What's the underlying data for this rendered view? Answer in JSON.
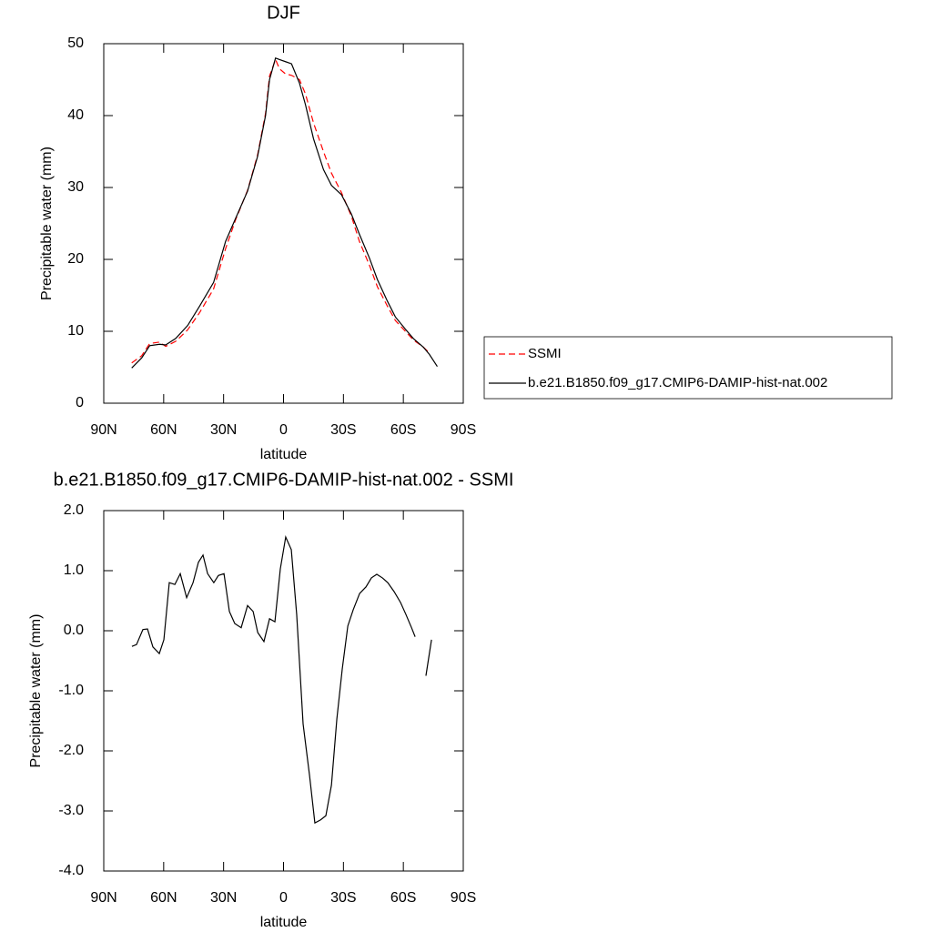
{
  "chart_data": [
    {
      "type": "line",
      "title": "DJF",
      "xlabel": "latitude",
      "ylabel": "Precipitable water (mm)",
      "x": [
        76,
        71,
        67,
        62,
        59,
        54,
        48,
        42,
        35,
        29,
        24,
        18,
        13,
        9,
        7,
        4,
        2,
        -1,
        -4,
        -8,
        -11,
        -15,
        -20,
        -24,
        -29,
        -34,
        -38,
        -43,
        -47,
        -52,
        -56,
        -61,
        -65,
        -70,
        -73,
        -77
      ],
      "series": [
        {
          "name": "SSMI",
          "color": "#ff0000",
          "dash": true,
          "values": [
            5.6,
            6.6,
            8.3,
            8.5,
            7.9,
            8.6,
            10.2,
            12.6,
            15.9,
            21.5,
            25.5,
            29.6,
            34.5,
            40.3,
            45.5,
            47.8,
            46.5,
            45.8,
            45.6,
            45.0,
            43.0,
            39.0,
            35.0,
            32.0,
            29.3,
            26.0,
            22.5,
            19.2,
            16.2,
            13.5,
            11.5,
            10.0,
            8.8,
            7.8,
            7.0,
            null
          ]
        },
        {
          "name": "b.e21.B1850.f09_g17.CMIP6-DAMIP-hist-nat.002",
          "color": "#000000",
          "dash": false,
          "values": [
            4.9,
            6.3,
            8.0,
            8.2,
            8.1,
            9.0,
            10.8,
            13.5,
            16.8,
            22.5,
            25.7,
            29.5,
            34.3,
            40.0,
            45.0,
            48.0,
            47.8,
            47.5,
            47.2,
            44.5,
            41.5,
            36.8,
            32.5,
            30.3,
            29.0,
            26.3,
            23.5,
            20.2,
            17.2,
            14.2,
            12.0,
            10.3,
            9.0,
            7.8,
            6.8,
            5.1
          ]
        }
      ],
      "xlim": [
        90,
        -90
      ],
      "xticks": [
        {
          "value": 90,
          "label": "90N"
        },
        {
          "value": 60,
          "label": "60N"
        },
        {
          "value": 30,
          "label": "30N"
        },
        0,
        {
          "value": -30,
          "label": "30S"
        },
        {
          "value": -60,
          "label": "60S"
        },
        {
          "value": -90,
          "label": "90S"
        }
      ],
      "ylim": [
        0,
        50
      ],
      "yticks": [
        0,
        10,
        20,
        30,
        40,
        50
      ],
      "legend": "right"
    },
    {
      "type": "line",
      "title": "b.e21.B1850.f09_g17.CMIP6-DAMIP-hist-nat.002 - SSMI",
      "xlabel": "latitude",
      "ylabel": "Precipitable water (mm)",
      "x": [
        75.9,
        73.6,
        70.4,
        68.1,
        65.4,
        62.2,
        59.9,
        57.2,
        54.4,
        51.7,
        48.5,
        45.3,
        42.6,
        40.3,
        38,
        34.9,
        32.6,
        29.8,
        27.1,
        24.4,
        21.2,
        18,
        15.2,
        12.9,
        9.8,
        7,
        4.3,
        1.6,
        -1.1,
        -3.9,
        -6.6,
        -9.8,
        -13,
        -15.7,
        -18.5,
        -21.2,
        -24,
        -26.7,
        -29.4,
        -32.2,
        -34.9,
        -38.1,
        -41.3,
        -44,
        -46.7,
        -49.5,
        -52.2,
        -55.4,
        -58.6,
        -61.3,
        -64.1,
        -65.9,
        -68.7,
        -71.3,
        -74.1
      ],
      "color": "#000000",
      "values": [
        -0.26,
        -0.23,
        0.02,
        0.03,
        -0.27,
        -0.38,
        -0.15,
        0.8,
        0.77,
        0.95,
        0.55,
        0.8,
        1.14,
        1.26,
        0.95,
        0.8,
        0.92,
        0.95,
        0.32,
        0.12,
        0.05,
        0.42,
        0.32,
        -0.03,
        -0.18,
        0.2,
        0.15,
        1.03,
        1.56,
        1.35,
        0.27,
        -1.55,
        -2.4,
        -3.2,
        -3.15,
        -3.08,
        -2.57,
        -1.47,
        -0.64,
        0.08,
        0.35,
        0.62,
        0.73,
        0.88,
        0.94,
        0.88,
        0.8,
        0.65,
        0.47,
        0.27,
        0.05,
        -0.1,
        null,
        -0.75,
        -0.15
      ],
      "xlim": [
        90,
        -90
      ],
      "xticks": [
        {
          "value": 90,
          "label": "90N"
        },
        {
          "value": 60,
          "label": "60N"
        },
        {
          "value": 30,
          "label": "30N"
        },
        0,
        {
          "value": -30,
          "label": "30S"
        },
        {
          "value": -60,
          "label": "60S"
        },
        {
          "value": -90,
          "label": "90S"
        }
      ],
      "ylim": [
        -4,
        2
      ],
      "yticks": [
        {
          "value": -4,
          "label": "-4.0"
        },
        {
          "value": -3,
          "label": "-3.0"
        },
        {
          "value": -2,
          "label": "-2.0"
        },
        {
          "value": -1,
          "label": "-1.0"
        },
        {
          "value": 0,
          "label": "0.0"
        },
        {
          "value": 1,
          "label": "1.0"
        },
        {
          "value": 2,
          "label": "2.0"
        }
      ]
    }
  ]
}
